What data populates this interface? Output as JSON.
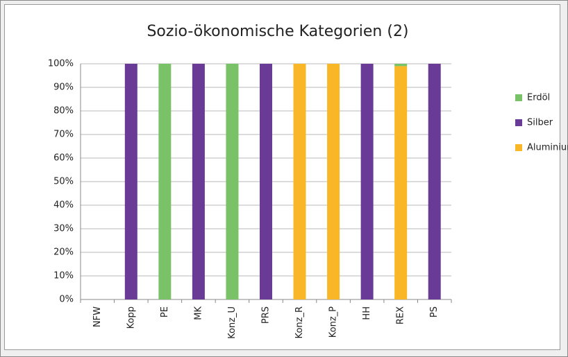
{
  "chart_data": {
    "type": "bar",
    "stacked": true,
    "title": "Sozio-ökonomische Kategorien (2)",
    "categories": [
      "NFW",
      "Kopp",
      "PE",
      "MK",
      "Konz_U",
      "PRS",
      "Konz_R",
      "Konz_P",
      "HH",
      "REX",
      "PS"
    ],
    "series": [
      {
        "name": "Aluminium",
        "color": "#f9b626",
        "values": [
          0,
          0,
          0,
          0,
          0,
          0,
          100,
          100,
          0,
          99,
          0
        ]
      },
      {
        "name": "Silber",
        "color": "#6a3b96",
        "values": [
          0,
          100,
          0,
          100,
          0,
          100,
          0,
          0,
          100,
          0,
          100
        ]
      },
      {
        "name": "Erdöl",
        "color": "#79c267",
        "values": [
          0,
          0,
          100,
          0,
          100,
          0,
          0,
          0,
          0,
          1,
          0
        ]
      }
    ],
    "ylim": [
      0,
      100
    ],
    "yticks": [
      {
        "value": 0,
        "label": "0%"
      },
      {
        "value": 10,
        "label": "10%"
      },
      {
        "value": 20,
        "label": "20%"
      },
      {
        "value": 30,
        "label": "30%"
      },
      {
        "value": 40,
        "label": "40%"
      },
      {
        "value": 50,
        "label": "50%"
      },
      {
        "value": 60,
        "label": "60%"
      },
      {
        "value": 70,
        "label": "70%"
      },
      {
        "value": 80,
        "label": "80%"
      },
      {
        "value": 90,
        "label": "90%"
      },
      {
        "value": 100,
        "label": "100%"
      }
    ],
    "grid": true,
    "legend": "right"
  }
}
